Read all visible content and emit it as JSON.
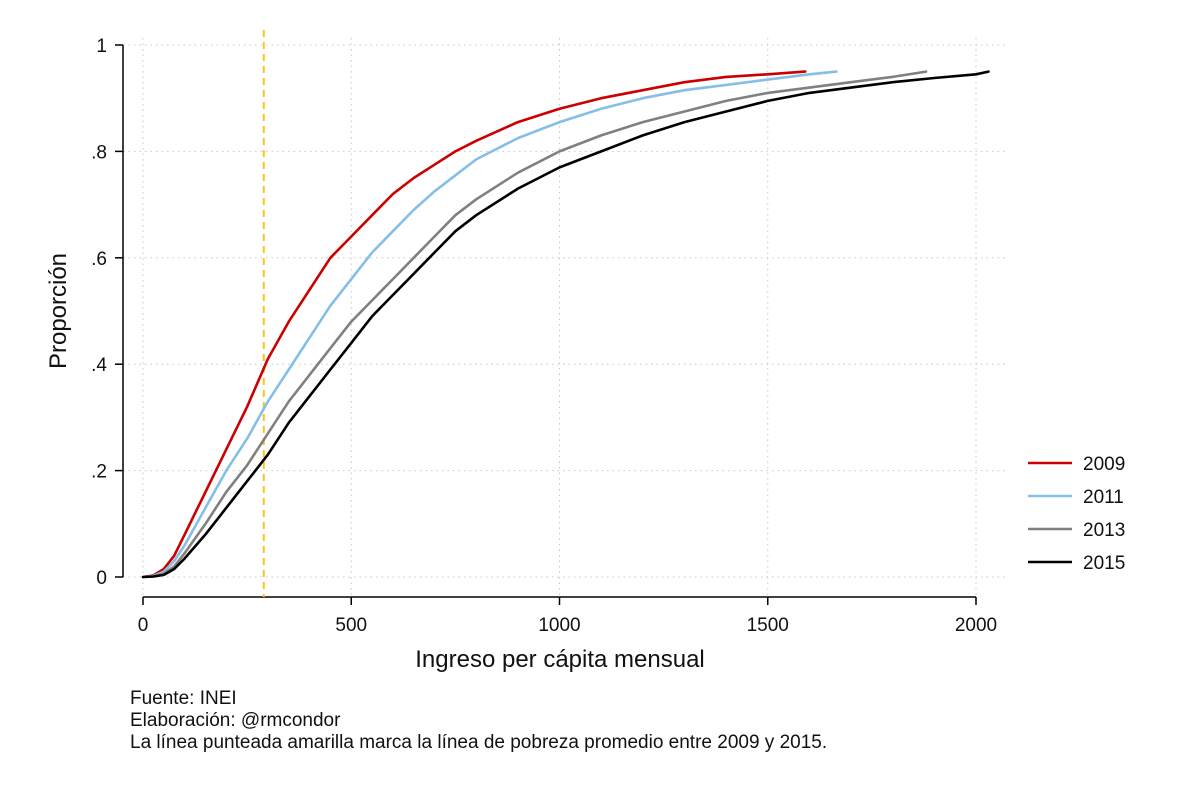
{
  "chart_data": {
    "type": "line",
    "title": "",
    "xlabel": "Ingreso per cápita mensual",
    "ylabel": "Proporción",
    "xlim": [
      0,
      2050
    ],
    "ylim": [
      0,
      1
    ],
    "x_ticks": [
      0,
      500,
      1000,
      1500,
      2000
    ],
    "x_tick_labels": [
      "0",
      "500",
      "1000",
      "1500",
      "2000"
    ],
    "y_ticks": [
      0,
      0.2,
      0.4,
      0.6,
      0.8,
      1
    ],
    "y_tick_labels": [
      "0",
      ".2",
      ".4",
      ".6",
      ".8",
      "1"
    ],
    "grid": true,
    "legend_position": "right",
    "reference_line": {
      "axis": "x",
      "value": 290,
      "color": "#f5c518",
      "style": "dashed"
    },
    "series": [
      {
        "name": "2009",
        "color": "#cc0000",
        "points": [
          [
            0,
            0
          ],
          [
            25,
            0.003
          ],
          [
            50,
            0.015
          ],
          [
            75,
            0.04
          ],
          [
            100,
            0.08
          ],
          [
            150,
            0.16
          ],
          [
            200,
            0.24
          ],
          [
            250,
            0.32
          ],
          [
            300,
            0.41
          ],
          [
            350,
            0.48
          ],
          [
            400,
            0.54
          ],
          [
            450,
            0.6
          ],
          [
            500,
            0.64
          ],
          [
            550,
            0.68
          ],
          [
            600,
            0.72
          ],
          [
            650,
            0.75
          ],
          [
            700,
            0.775
          ],
          [
            750,
            0.8
          ],
          [
            800,
            0.82
          ],
          [
            900,
            0.855
          ],
          [
            1000,
            0.88
          ],
          [
            1100,
            0.9
          ],
          [
            1200,
            0.915
          ],
          [
            1300,
            0.93
          ],
          [
            1400,
            0.94
          ],
          [
            1500,
            0.945
          ],
          [
            1590,
            0.95
          ]
        ]
      },
      {
        "name": "2011",
        "color": "#85bfe6",
        "points": [
          [
            0,
            0
          ],
          [
            25,
            0.002
          ],
          [
            50,
            0.01
          ],
          [
            75,
            0.03
          ],
          [
            100,
            0.06
          ],
          [
            150,
            0.13
          ],
          [
            200,
            0.2
          ],
          [
            250,
            0.26
          ],
          [
            300,
            0.33
          ],
          [
            350,
            0.39
          ],
          [
            400,
            0.45
          ],
          [
            450,
            0.51
          ],
          [
            500,
            0.56
          ],
          [
            550,
            0.61
          ],
          [
            600,
            0.65
          ],
          [
            650,
            0.69
          ],
          [
            700,
            0.725
          ],
          [
            750,
            0.755
          ],
          [
            800,
            0.785
          ],
          [
            900,
            0.825
          ],
          [
            1000,
            0.855
          ],
          [
            1100,
            0.88
          ],
          [
            1200,
            0.9
          ],
          [
            1300,
            0.915
          ],
          [
            1400,
            0.925
          ],
          [
            1500,
            0.935
          ],
          [
            1600,
            0.945
          ],
          [
            1665,
            0.95
          ]
        ]
      },
      {
        "name": "2013",
        "color": "#808080",
        "points": [
          [
            0,
            0
          ],
          [
            25,
            0.001
          ],
          [
            50,
            0.006
          ],
          [
            75,
            0.02
          ],
          [
            100,
            0.045
          ],
          [
            150,
            0.1
          ],
          [
            200,
            0.16
          ],
          [
            250,
            0.21
          ],
          [
            300,
            0.27
          ],
          [
            350,
            0.33
          ],
          [
            400,
            0.38
          ],
          [
            450,
            0.43
          ],
          [
            500,
            0.48
          ],
          [
            550,
            0.52
          ],
          [
            600,
            0.56
          ],
          [
            650,
            0.6
          ],
          [
            700,
            0.64
          ],
          [
            750,
            0.68
          ],
          [
            800,
            0.71
          ],
          [
            900,
            0.76
          ],
          [
            1000,
            0.8
          ],
          [
            1100,
            0.83
          ],
          [
            1200,
            0.855
          ],
          [
            1300,
            0.875
          ],
          [
            1400,
            0.895
          ],
          [
            1500,
            0.91
          ],
          [
            1600,
            0.92
          ],
          [
            1700,
            0.93
          ],
          [
            1800,
            0.94
          ],
          [
            1880,
            0.95
          ]
        ]
      },
      {
        "name": "2015",
        "color": "#000000",
        "points": [
          [
            0,
            0
          ],
          [
            25,
            0.001
          ],
          [
            50,
            0.004
          ],
          [
            75,
            0.015
          ],
          [
            100,
            0.035
          ],
          [
            150,
            0.08
          ],
          [
            200,
            0.13
          ],
          [
            250,
            0.18
          ],
          [
            300,
            0.23
          ],
          [
            350,
            0.29
          ],
          [
            400,
            0.34
          ],
          [
            450,
            0.39
          ],
          [
            500,
            0.44
          ],
          [
            550,
            0.49
          ],
          [
            600,
            0.53
          ],
          [
            650,
            0.57
          ],
          [
            700,
            0.61
          ],
          [
            750,
            0.65
          ],
          [
            800,
            0.68
          ],
          [
            900,
            0.73
          ],
          [
            1000,
            0.77
          ],
          [
            1100,
            0.8
          ],
          [
            1200,
            0.83
          ],
          [
            1300,
            0.855
          ],
          [
            1400,
            0.875
          ],
          [
            1500,
            0.895
          ],
          [
            1600,
            0.91
          ],
          [
            1700,
            0.92
          ],
          [
            1800,
            0.93
          ],
          [
            1900,
            0.938
          ],
          [
            2000,
            0.945
          ],
          [
            2030,
            0.95
          ]
        ]
      }
    ]
  },
  "notes": {
    "source": "Fuente: INEI",
    "author": "Elaboración: @rmcondor",
    "caption": "La línea punteada amarilla marca la línea de pobreza promedio entre 2009 y 2015."
  }
}
